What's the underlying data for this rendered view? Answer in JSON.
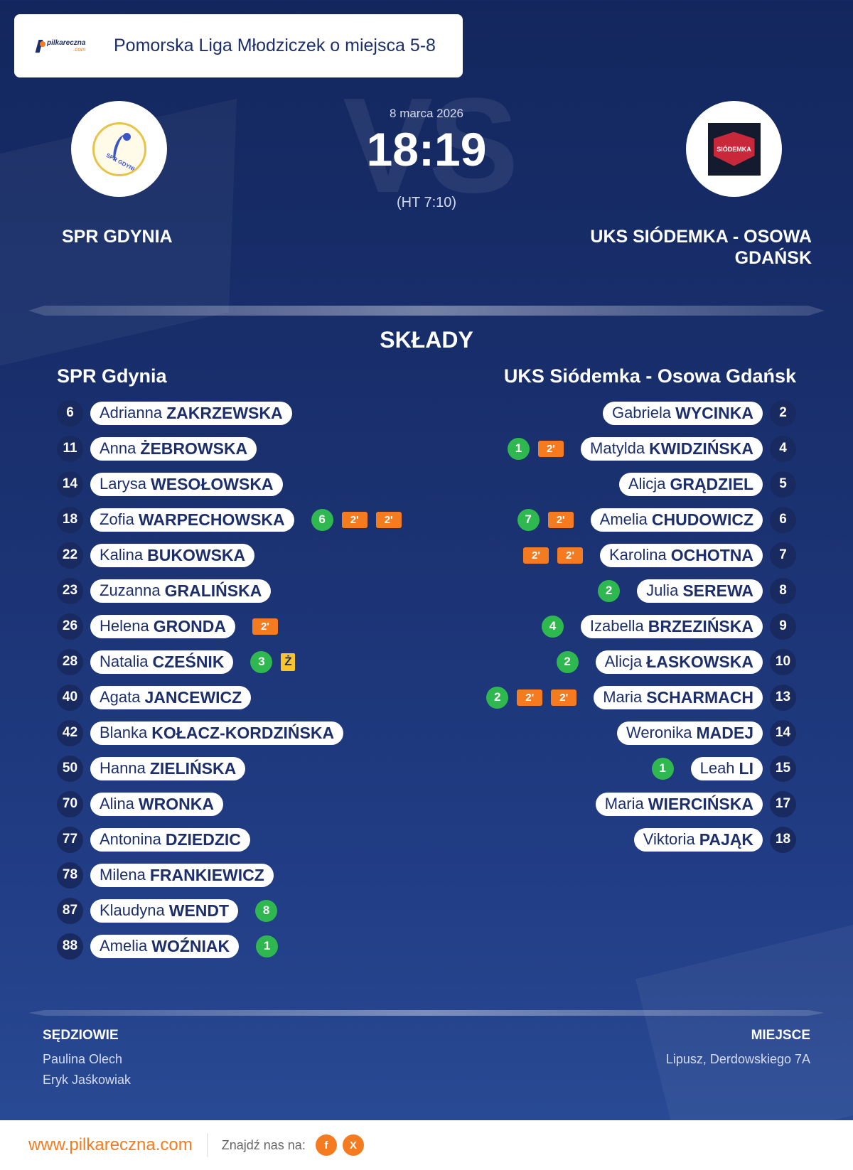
{
  "header": {
    "logo_text": "pilkareczna",
    "logo_sub": ".com",
    "league": "Pomorska Liga Młodziczek o miejsca 5-8"
  },
  "match": {
    "date": "8 marca 2026",
    "score": "18:19",
    "halftime": "(HT 7:10)",
    "vs_text": "VS"
  },
  "home": {
    "name": "SPR GDYNIA",
    "crest_text": "SPR GDYNIA",
    "squad_title": "SPR Gdynia",
    "players": [
      {
        "number": "6",
        "first": "Adrianna",
        "last": "ZAKRZEWSKA",
        "goals": null,
        "suspensions": 0,
        "yellow": null
      },
      {
        "number": "11",
        "first": "Anna",
        "last": "ŻEBROWSKA",
        "goals": null,
        "suspensions": 0,
        "yellow": null
      },
      {
        "number": "14",
        "first": "Larysa",
        "last": "WESOŁOWSKA",
        "goals": null,
        "suspensions": 0,
        "yellow": null
      },
      {
        "number": "18",
        "first": "Zofia",
        "last": "WARPECHOWSKA",
        "goals": "6",
        "suspensions": 2,
        "yellow": null
      },
      {
        "number": "22",
        "first": "Kalina",
        "last": "BUKOWSKA",
        "goals": null,
        "suspensions": 0,
        "yellow": null
      },
      {
        "number": "23",
        "first": "Zuzanna",
        "last": "GRALIŃSKA",
        "goals": null,
        "suspensions": 0,
        "yellow": null
      },
      {
        "number": "26",
        "first": "Helena",
        "last": "GRONDA",
        "goals": null,
        "suspensions": 1,
        "yellow": null
      },
      {
        "number": "28",
        "first": "Natalia",
        "last": "CZEŚNIK",
        "goals": "3",
        "suspensions": 0,
        "yellow": "Ż"
      },
      {
        "number": "40",
        "first": "Agata",
        "last": "JANCEWICZ",
        "goals": null,
        "suspensions": 0,
        "yellow": null
      },
      {
        "number": "42",
        "first": "Blanka",
        "last": "KOŁACZ-KORDZIŃSKA",
        "goals": null,
        "suspensions": 0,
        "yellow": null
      },
      {
        "number": "50",
        "first": "Hanna",
        "last": "ZIELIŃSKA",
        "goals": null,
        "suspensions": 0,
        "yellow": null
      },
      {
        "number": "70",
        "first": "Alina",
        "last": "WRONKA",
        "goals": null,
        "suspensions": 0,
        "yellow": null
      },
      {
        "number": "77",
        "first": "Antonina",
        "last": "DZIEDZIC",
        "goals": null,
        "suspensions": 0,
        "yellow": null
      },
      {
        "number": "78",
        "first": "Milena",
        "last": "FRANKIEWICZ",
        "goals": null,
        "suspensions": 0,
        "yellow": null
      },
      {
        "number": "87",
        "first": "Klaudyna",
        "last": "WENDT",
        "goals": "8",
        "suspensions": 0,
        "yellow": null
      },
      {
        "number": "88",
        "first": "Amelia",
        "last": "WOŹNIAK",
        "goals": "1",
        "suspensions": 0,
        "yellow": null
      }
    ]
  },
  "away": {
    "name": "UKS SIÓDEMKA - OSOWA GDAŃSK",
    "crest_text": "SIÓDEMKA",
    "squad_title": "UKS Siódemka - Osowa Gdańsk",
    "players": [
      {
        "number": "2",
        "first": "Gabriela",
        "last": "WYCINKA",
        "goals": null,
        "suspensions": 0
      },
      {
        "number": "4",
        "first": "Matylda",
        "last": "KWIDZIŃSKA",
        "goals": "1",
        "suspensions": 1
      },
      {
        "number": "5",
        "first": "Alicja",
        "last": "GRĄDZIEL",
        "goals": null,
        "suspensions": 0
      },
      {
        "number": "6",
        "first": "Amelia",
        "last": "CHUDOWICZ",
        "goals": "7",
        "suspensions": 1
      },
      {
        "number": "7",
        "first": "Karolina",
        "last": "OCHOTNA",
        "goals": null,
        "suspensions": 2
      },
      {
        "number": "8",
        "first": "Julia",
        "last": "SEREWA",
        "goals": "2",
        "suspensions": 0
      },
      {
        "number": "9",
        "first": "Izabella",
        "last": "BRZEZIŃSKA",
        "goals": "4",
        "suspensions": 0
      },
      {
        "number": "10",
        "first": "Alicja",
        "last": "ŁASKOWSKA",
        "goals": "2",
        "suspensions": 0
      },
      {
        "number": "13",
        "first": "Maria",
        "last": "SCHARMACH",
        "goals": "2",
        "suspensions": 2
      },
      {
        "number": "14",
        "first": "Weronika",
        "last": "MADEJ",
        "goals": null,
        "suspensions": 0
      },
      {
        "number": "15",
        "first": "Leah",
        "last": "LI",
        "goals": "1",
        "suspensions": 0
      },
      {
        "number": "17",
        "first": "Maria",
        "last": "WIERCIŃSKA",
        "goals": null,
        "suspensions": 0
      },
      {
        "number": "18",
        "first": "Viktoria",
        "last": "PAJĄK",
        "goals": null,
        "suspensions": 0
      }
    ]
  },
  "labels": {
    "squads": "SKŁADY",
    "suspension": "2'",
    "referees": "SĘDZIOWIE",
    "venue": "MIEJSCE"
  },
  "referees": [
    "Paulina Olech",
    "Eryk Jaśkowiak"
  ],
  "venue": "Lipusz, Derdowskiego 7A",
  "footer": {
    "url": "www.pilkareczna.com",
    "find_us": "Znajdź nas na:",
    "social": [
      {
        "icon": "facebook-icon",
        "glyph": "f"
      },
      {
        "icon": "x-icon",
        "glyph": "X"
      }
    ]
  },
  "colors": {
    "background": "#1b3272",
    "accent": "#f47b20",
    "goal": "#2fb84f",
    "suspension": "#f47b20",
    "yellow_card": "#f8c52a",
    "text_dark": "#1c2f6c"
  }
}
